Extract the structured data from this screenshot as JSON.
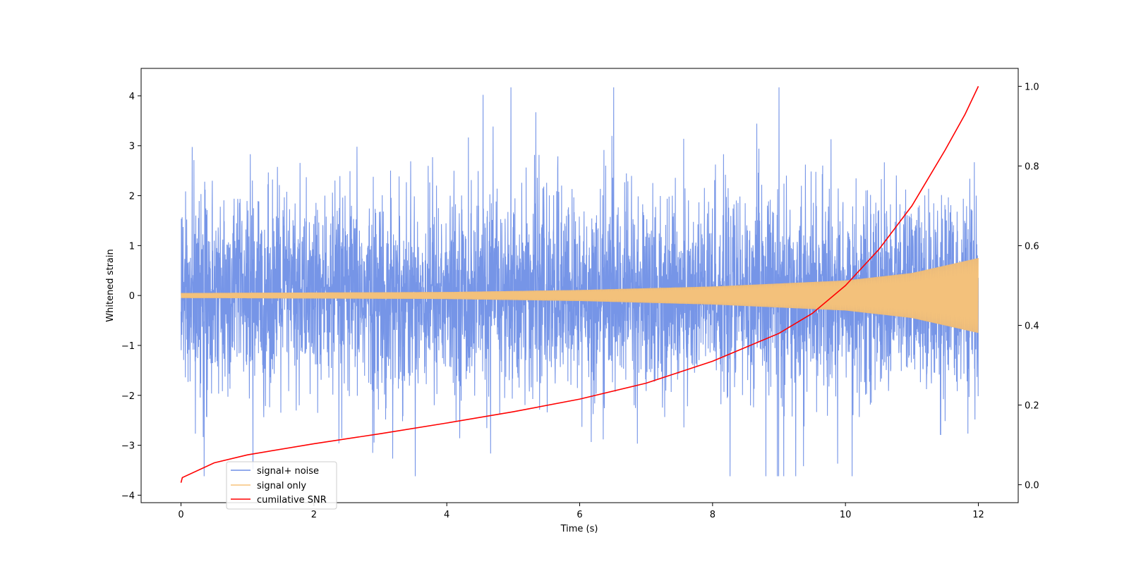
{
  "chart_data": {
    "type": "line",
    "title": "",
    "xlabel": "Time (s)",
    "ylabel": "Whitened strain",
    "y2label": "",
    "xlim": [
      -0.6,
      12.6
    ],
    "ylim": [
      -4.15,
      4.55
    ],
    "y2lim": [
      -0.045,
      1.045
    ],
    "x_ticks": [
      0,
      2,
      4,
      6,
      8,
      10,
      12
    ],
    "x_tick_labels": [
      "0",
      "2",
      "4",
      "6",
      "8",
      "10",
      "12"
    ],
    "y_ticks": [
      -4,
      -3,
      -2,
      -1,
      0,
      1,
      2,
      3,
      4
    ],
    "y_tick_labels": [
      "−4",
      "−3",
      "−2",
      "−1",
      "0",
      "1",
      "2",
      "3",
      "4"
    ],
    "y2_ticks": [
      0.0,
      0.2,
      0.4,
      0.6,
      0.8,
      1.0
    ],
    "y2_tick_labels": [
      "0.0",
      "0.2",
      "0.4",
      "0.6",
      "0.8",
      "1.0"
    ],
    "grid": false,
    "legend_position": "lower-left",
    "series": [
      {
        "name": "signal+ noise",
        "color": "#6f8fe6",
        "axis": "left",
        "description": "dense noisy oscillation",
        "time_range": [
          0,
          12
        ],
        "typical_envelope": [
          -2.0,
          2.0
        ],
        "max_value": 4.17,
        "min_value": -3.62
      },
      {
        "name": "signal only",
        "color": "#f7c47a",
        "axis": "left",
        "description": "chirp with growing amplitude",
        "time_range": [
          0,
          12
        ],
        "amplitude_points": [
          [
            0,
            0.05
          ],
          [
            2,
            0.06
          ],
          [
            4,
            0.07
          ],
          [
            6,
            0.11
          ],
          [
            8,
            0.18
          ],
          [
            10,
            0.3
          ],
          [
            11,
            0.45
          ],
          [
            12,
            0.75
          ]
        ]
      },
      {
        "name": "cumilative SNR",
        "color": "#ff0000",
        "axis": "right",
        "x": [
          0,
          0.02,
          0.5,
          1,
          2,
          3,
          4,
          5,
          6,
          7,
          8,
          9,
          9.5,
          10,
          10.5,
          11,
          11.5,
          11.8,
          12
        ],
        "y": [
          0.005,
          0.018,
          0.055,
          0.075,
          0.103,
          0.128,
          0.155,
          0.183,
          0.215,
          0.255,
          0.31,
          0.38,
          0.43,
          0.5,
          0.59,
          0.7,
          0.84,
          0.93,
          1.0
        ]
      }
    ]
  }
}
